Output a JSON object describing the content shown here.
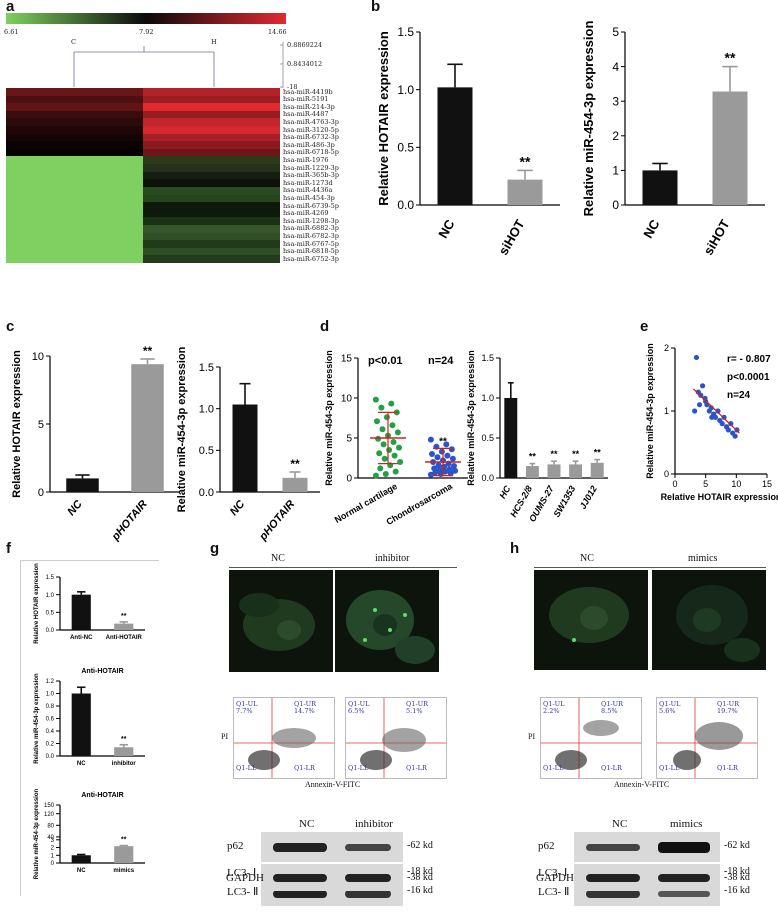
{
  "panel_labels": {
    "a": "a",
    "b": "b",
    "c": "c",
    "d": "d",
    "e": "e",
    "f": "f",
    "g": "g",
    "h": "h"
  },
  "heatmap": {
    "scale_min": "6.61",
    "scale_mid": "7.92",
    "scale_max": "14.66",
    "col_left": "C",
    "col_right": "H",
    "dendro_val1": "0.8869224",
    "dendro_val2": "0.8434012",
    "dendro_val3": "-18",
    "mirnas": [
      "hsa-miR-4419b",
      "hsa-miR-5191",
      "hsa-miR-214-3p",
      "hsa-miR-4487",
      "hsa-miR-4763-3p",
      "hsa-miR-3120-5p",
      "hsa-miR-6732-3p",
      "hsa-miR-486-3p",
      "hsa-miR-6718-5p",
      "hsa-miR-1976",
      "hsa-miR-1229-3p",
      "hsa-miR-365b-3p",
      "hsa-miR-1273d",
      "hsa-miR-4436a",
      "hsa-miR-454-3p",
      "hsa-miR-6739-5p",
      "hsa-miR-4269",
      "hsa-miR-1298-3p",
      "hsa-miR-6882-3p",
      "hsa-miR-6782-3p",
      "hsa-miR-6767-5p",
      "hsa-miR-6818-5p",
      "hsa-miR-6752-3p"
    ],
    "left_colors": [
      "#6a1518",
      "#4c0f12",
      "#611416",
      "#3a0c0e",
      "#2d0a0b",
      "#1f0708",
      "#160506",
      "#0a0203",
      "#050101",
      "#7ed060",
      "#7ed060",
      "#7ed060",
      "#7ed060",
      "#7ed060",
      "#7ed060",
      "#7ed060",
      "#7ed060",
      "#7ed060",
      "#7ed060",
      "#7ed060",
      "#7ed060",
      "#7ed060",
      "#7ed060"
    ],
    "right_colors": [
      "#b32228",
      "#9c1d22",
      "#e02a30",
      "#951c20",
      "#c2262b",
      "#d4292e",
      "#a51f24",
      "#8a1a1e",
      "#6d1518",
      "#2c3a1a",
      "#24321a",
      "#141f0f",
      "#0c120a",
      "#2a4a1f",
      "#28461d",
      "#0f180c",
      "#101a0c",
      "#1c3016",
      "#35562a",
      "#2f5026",
      "#213a18",
      "#2e4e24",
      "#243c1c"
    ]
  },
  "chart_data": [
    {
      "panel": "b",
      "type": "bar",
      "categories": [
        "NC",
        "siHOT"
      ],
      "values": [
        1.02,
        0.22
      ],
      "errors": [
        0.2,
        0.08
      ],
      "ylabel": "Relative HOTAIR expression",
      "ylim": [
        0,
        1.5
      ],
      "yticks": [
        "0.0",
        "0.5",
        "1.0",
        "1.5"
      ],
      "sig": [
        "",
        "**"
      ],
      "colors": [
        "#111111",
        "#9a9a9a"
      ]
    },
    {
      "panel": "b",
      "type": "bar",
      "categories": [
        "NC",
        "siHOT"
      ],
      "values": [
        1.0,
        3.28
      ],
      "errors": [
        0.2,
        0.72
      ],
      "ylabel": "Relative miR-454-3p expression",
      "ylim": [
        0,
        5
      ],
      "yticks": [
        "0",
        "1",
        "2",
        "3",
        "4",
        "5"
      ],
      "sig": [
        "",
        "**"
      ],
      "colors": [
        "#111111",
        "#9a9a9a"
      ]
    },
    {
      "panel": "c",
      "type": "bar",
      "categories": [
        "NC",
        "pHOTAIR"
      ],
      "values": [
        1.0,
        9.4
      ],
      "errors": [
        0.25,
        0.38
      ],
      "ylabel": "Relative HOTAIR expression",
      "ylim": [
        0,
        10
      ],
      "yticks": [
        "0",
        "5",
        "10"
      ],
      "sig": [
        "",
        "**"
      ],
      "colors": [
        "#111111",
        "#9a9a9a"
      ]
    },
    {
      "panel": "c",
      "type": "bar",
      "categories": [
        "NC",
        "pHOTAIR"
      ],
      "values": [
        1.05,
        0.17
      ],
      "errors": [
        0.25,
        0.07
      ],
      "ylabel": "Relative miR-454-3p expression",
      "ylim": [
        0,
        1.5
      ],
      "yticks": [
        "0.0",
        "0.5",
        "1.0",
        "1.5"
      ],
      "sig": [
        "",
        "**"
      ],
      "colors": [
        "#111111",
        "#9a9a9a"
      ]
    },
    {
      "panel": "d",
      "type": "scatter",
      "categories": [
        "Normal cartilage",
        "Chondrosarcoma"
      ],
      "ylabel": "Relative miR-454-3p expression",
      "ylim": [
        0,
        15
      ],
      "yticks": [
        "0",
        "5",
        "10",
        "15"
      ],
      "annotations": [
        "p<0.01",
        "n=24"
      ],
      "sig": [
        "",
        "**"
      ],
      "colors": [
        "#22a045",
        "#2a55c8"
      ],
      "means": [
        5.0,
        2.0
      ],
      "sds": [
        3.2,
        1.7
      ],
      "series": [
        {
          "values": [
            9.8,
            9.3,
            8.8,
            8.2,
            7.6,
            7.1,
            6.6,
            6.1,
            5.7,
            5.3,
            4.9,
            4.5,
            4.2,
            3.8,
            3.5,
            3.1,
            2.8,
            2.4,
            2.0,
            1.6,
            1.2,
            0.8,
            0.5,
            0.3
          ]
        },
        {
          "values": [
            4.8,
            4.2,
            3.9,
            3.6,
            3.3,
            3.0,
            2.8,
            2.6,
            2.4,
            2.2,
            2.0,
            1.8,
            1.6,
            1.5,
            1.4,
            1.2,
            1.1,
            1.0,
            0.9,
            0.8,
            0.7,
            0.6,
            0.5,
            0.4
          ]
        }
      ]
    },
    {
      "panel": "d",
      "type": "bar",
      "categories": [
        "HC",
        "HCS-2/8",
        "OUMS-27",
        "SW1353",
        "JJ012"
      ],
      "values": [
        1.0,
        0.15,
        0.17,
        0.17,
        0.19
      ],
      "errors": [
        0.19,
        0.03,
        0.04,
        0.04,
        0.04
      ],
      "ylabel": "Relative miR-454-3p expression",
      "ylim": [
        0,
        1.5
      ],
      "yticks": [
        "0.0",
        "0.5",
        "1.0",
        "1.5"
      ],
      "sig": [
        "",
        "**",
        "**",
        "**",
        "**"
      ],
      "colors": [
        "#111111",
        "#9a9a9a",
        "#9a9a9a",
        "#9a9a9a",
        "#9a9a9a"
      ]
    },
    {
      "panel": "e",
      "type": "scatter",
      "xlabel": "Relative HOTAIR expression",
      "ylabel": "Relative miR-454-3p expression",
      "xlim": [
        0,
        15
      ],
      "ylim": [
        0,
        2
      ],
      "xticks": [
        "0",
        "5",
        "10",
        "15"
      ],
      "yticks": [
        "0",
        "1",
        "2"
      ],
      "annotations": [
        "r= - 0.807",
        "p<0.0001",
        "n=24"
      ],
      "x": [
        3.5,
        3.8,
        4.2,
        4.5,
        4.9,
        5.2,
        5.6,
        5.9,
        6.3,
        6.6,
        7.0,
        7.3,
        7.7,
        8.0,
        8.4,
        8.7,
        9.1,
        9.4,
        9.8,
        10.1,
        4.0,
        5.0,
        6.0,
        3.2
      ],
      "y": [
        1.85,
        1.3,
        1.25,
        1.4,
        1.2,
        1.1,
        1.0,
        1.05,
        0.95,
        0.9,
        1.0,
        0.85,
        0.8,
        0.9,
        0.75,
        0.7,
        0.8,
        0.65,
        0.6,
        0.7,
        1.1,
        1.15,
        0.9,
        1.0
      ],
      "fit": [
        [
          3,
          1.35
        ],
        [
          10.5,
          0.65
        ]
      ],
      "colors": [
        "#2a55c8",
        "#d02020"
      ]
    },
    {
      "panel": "f",
      "type": "bar",
      "categories": [
        "Anti-NC",
        "Anti-HOTAIR"
      ],
      "values": [
        1.0,
        0.18
      ],
      "errors": [
        0.08,
        0.05
      ],
      "ylabel": "Relative HOTAIR expression",
      "ylim": [
        0,
        1.5
      ],
      "yticks": [
        "0.0",
        "0.5",
        "1.0",
        "1.5"
      ],
      "sig": [
        "",
        "**"
      ],
      "colors": [
        "#111111",
        "#9a9a9a"
      ]
    },
    {
      "panel": "f",
      "type": "bar",
      "title": "Anti-HOTAIR",
      "categories": [
        "NC",
        "inhibitor"
      ],
      "values": [
        1.0,
        0.14
      ],
      "errors": [
        0.1,
        0.04
      ],
      "ylabel": "Relative miR-454-3p expression",
      "ylim": [
        0,
        1.2
      ],
      "yticks": [
        "0.0",
        "0.2",
        "0.4",
        "0.6",
        "0.8",
        "1.0",
        "1.2"
      ],
      "sig": [
        "",
        "**"
      ],
      "colors": [
        "#111111",
        "#9a9a9a"
      ]
    },
    {
      "panel": "f",
      "type": "bar",
      "title": "Anti-HOTAIR",
      "categories": [
        "NC",
        "mimics"
      ],
      "values": [
        1.0,
        8.0
      ],
      "errors": [
        0.1,
        2.0
      ],
      "ylabel": "Relative miR-454-3p expression",
      "ylim": [
        0,
        150
      ],
      "yticks": [
        "0",
        "1",
        "2",
        "3",
        "40",
        "80",
        "120",
        "150"
      ],
      "sig": [
        "",
        "**"
      ],
      "colors": [
        "#111111",
        "#9a9a9a"
      ]
    }
  ],
  "panel_g": {
    "micro_labels": [
      "NC",
      "inhibitor"
    ],
    "flow_quadrants": [
      [
        "Q1-UL",
        "Q1-UR",
        "Q1-LL",
        "Q1-LR"
      ],
      [
        "Q1-UL",
        "Q1-UR",
        "Q1-LL",
        "Q1-LR"
      ]
    ],
    "flow_values": [
      [
        "7.7%",
        "14.7%"
      ],
      [
        "6.5%",
        "5.1%"
      ]
    ],
    "flow_ylabel": "PI",
    "flow_xlabel": "Annexin-V-FITC",
    "wb_header": [
      "NC",
      "inhibitor"
    ],
    "wb_rows": [
      {
        "protein": "p62",
        "size": "-62 kd"
      },
      {
        "protein": "LC3- Ⅰ",
        "size": "-18 kd"
      },
      {
        "protein": "LC3- Ⅱ",
        "size": "-16 kd"
      },
      {
        "protein": "GAPDH",
        "size": "-38 kd"
      }
    ]
  },
  "panel_h": {
    "micro_labels": [
      "NC",
      "mimics"
    ],
    "flow_quadrants": [
      [
        "Q1-UL",
        "Q1-UR",
        "Q1-LL",
        "Q1-LR"
      ],
      [
        "Q1-UL",
        "Q1-UR",
        "Q1-LL",
        "Q1-LR"
      ]
    ],
    "flow_values": [
      [
        "2.2%",
        "8.5%"
      ],
      [
        "5.6%",
        "19.7%"
      ]
    ],
    "flow_ylabel": "PI",
    "flow_xlabel": "Annexin-V-FITC",
    "wb_header": [
      "NC",
      "mimics"
    ],
    "wb_rows": [
      {
        "protein": "p62",
        "size": "-62 kd"
      },
      {
        "protein": "LC3- Ⅰ",
        "size": "-18 kd"
      },
      {
        "protein": "LC3- Ⅱ",
        "size": "-16 kd"
      },
      {
        "protein": "GAPDH",
        "size": "-38 kd"
      }
    ]
  }
}
